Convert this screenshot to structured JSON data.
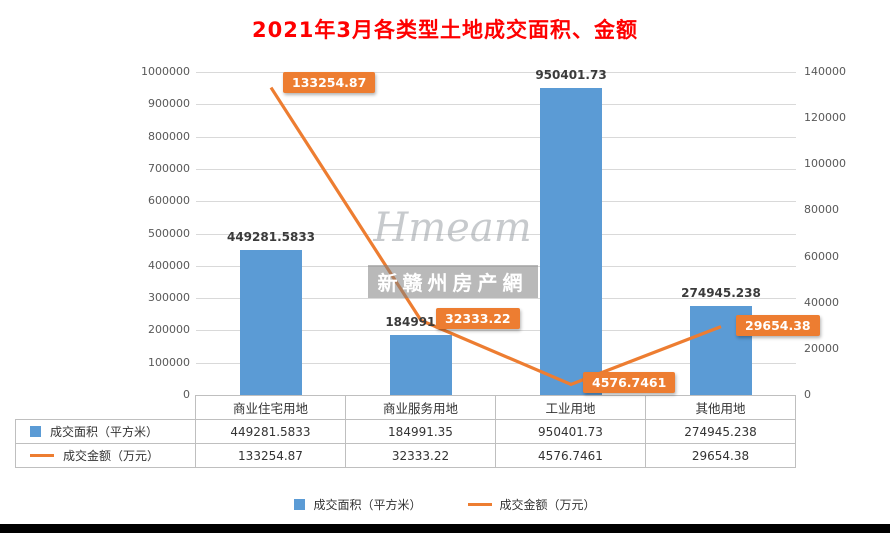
{
  "title": "2021年3月各类型土地成交面积、金额",
  "watermark": {
    "script": "Hmeam",
    "label": "新赣州房产網"
  },
  "chart_data": {
    "type": "combo-bar-line",
    "title": "2021年3月各类型土地成交面积、金额",
    "categories": [
      "商业住宅用地",
      "商业服务用地",
      "工业用地",
      "其他用地"
    ],
    "series": [
      {
        "name": "成交面积（平方米）",
        "type": "bar",
        "axis": "left",
        "color": "#5B9BD5",
        "values": [
          449281.5833,
          184991.35,
          950401.73,
          274945.238
        ],
        "labels": [
          "449281.5833",
          "184991.35",
          "950401.73",
          "274945.238"
        ]
      },
      {
        "name": "成交金额（万元）",
        "type": "line",
        "axis": "right",
        "color": "#ED7D31",
        "values": [
          133254.87,
          32333.22,
          4576.7461,
          29654.38
        ],
        "labels": [
          "133254.87",
          "32333.22",
          "4576.7461",
          "29654.38"
        ]
      }
    ],
    "left_axis": {
      "min": 0,
      "max": 1000000,
      "step": 100000
    },
    "right_axis": {
      "min": 0,
      "max": 140000,
      "step": 20000
    },
    "grid": "horizontal",
    "legend_position": "bottom"
  },
  "table": {
    "columns": [
      "商业住宅用地",
      "商业服务用地",
      "工业用地",
      "其他用地"
    ],
    "row_headers": [
      "成交面积（平方米）",
      "成交金额（万元）"
    ],
    "rows": [
      [
        "449281.5833",
        "184991.35",
        "950401.73",
        "274945.238"
      ],
      [
        "133254.87",
        "32333.22",
        "4576.7461",
        "29654.38"
      ]
    ]
  },
  "legend": [
    {
      "label": "成交面积（平方米）",
      "color": "#5B9BD5",
      "marker": "square"
    },
    {
      "label": "成交金额（万元）",
      "color": "#ED7D31",
      "marker": "line"
    }
  ]
}
